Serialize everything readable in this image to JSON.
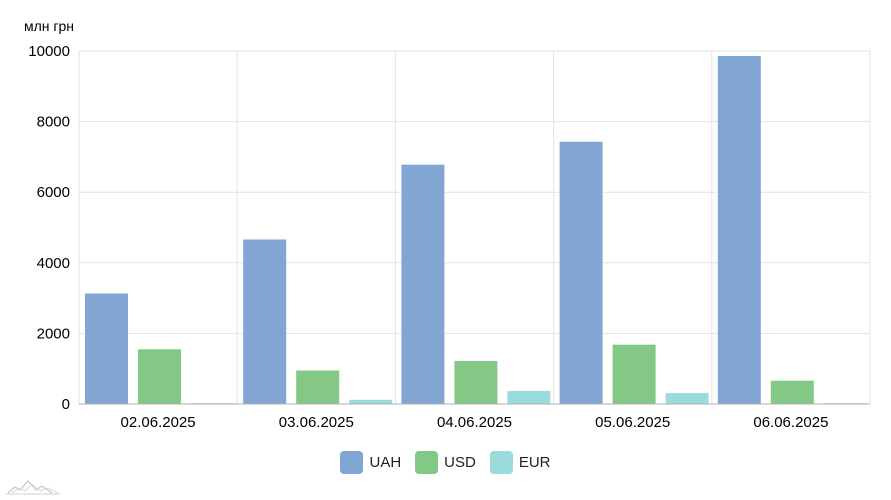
{
  "chart_data": {
    "type": "bar",
    "unit_label": "млн грн",
    "categories": [
      "02.06.2025",
      "03.06.2025",
      "04.06.2025",
      "05.06.2025",
      "06.06.2025"
    ],
    "series": [
      {
        "name": "UAH",
        "color": "#82a6d4",
        "values": [
          3130,
          4660,
          6780,
          7430,
          9860
        ]
      },
      {
        "name": "USD",
        "color": "#83c884",
        "values": [
          1550,
          950,
          1220,
          1680,
          660
        ]
      },
      {
        "name": "EUR",
        "color": "#9adcdc",
        "values": [
          10,
          120,
          370,
          310,
          20
        ]
      }
    ],
    "ylim": [
      0,
      10000
    ],
    "yticks": [
      0,
      2000,
      4000,
      6000,
      8000,
      10000
    ],
    "grid": true,
    "legend_position": "bottom-center"
  }
}
